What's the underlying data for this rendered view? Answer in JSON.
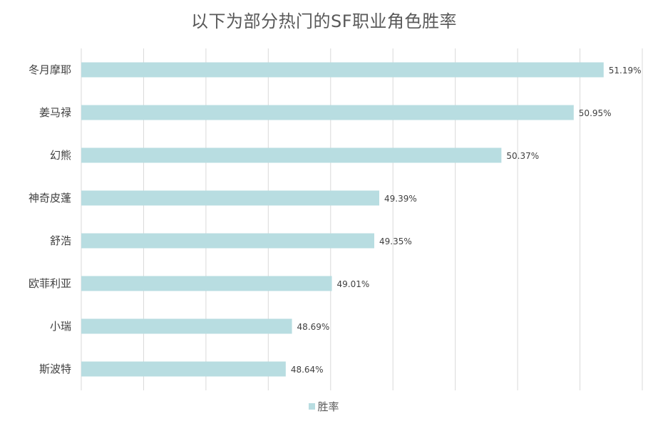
{
  "chart_data": {
    "type": "bar",
    "orientation": "horizontal",
    "title": "以下为部分热门的SF职业角色胜率",
    "categories": [
      "冬月摩耶",
      "姜马禄",
      "幻熊",
      "神奇皮蓬",
      "舒浩",
      "欧菲利亚",
      "小瑞",
      "斯波特"
    ],
    "series": [
      {
        "name": "胜率",
        "values": [
          51.19,
          50.95,
          50.37,
          49.39,
          49.35,
          49.01,
          48.69,
          48.64
        ],
        "labels": [
          "51.19%",
          "50.95%",
          "50.37%",
          "49.39%",
          "49.35%",
          "49.01%",
          "48.69%",
          "48.64%"
        ],
        "color": "#b8dde1"
      }
    ],
    "xlim": [
      47,
      51.5
    ],
    "grid": true,
    "legend_position": "bottom"
  }
}
